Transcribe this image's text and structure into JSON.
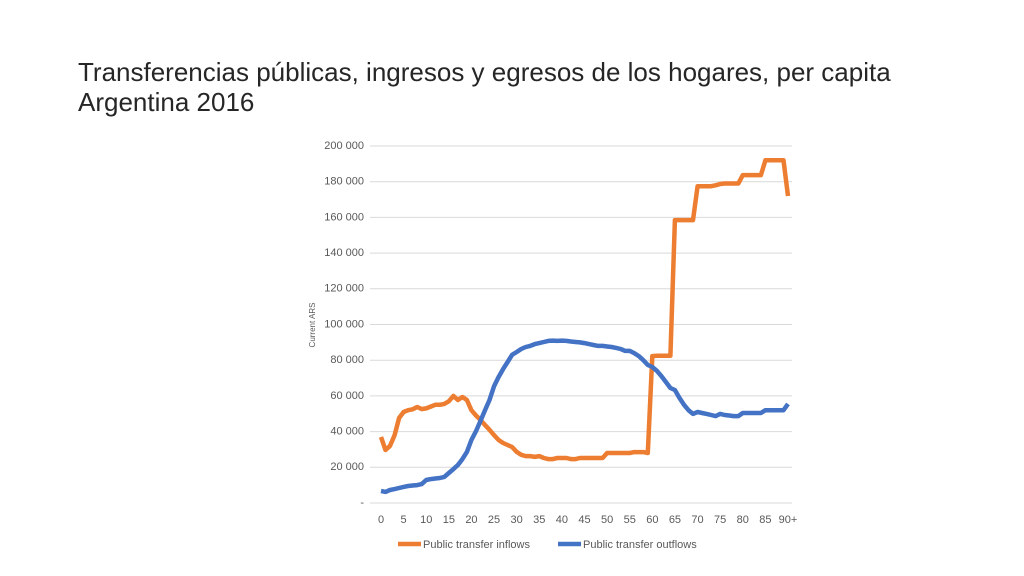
{
  "chart_data": {
    "type": "line",
    "title": "Transferencias públicas, ingresos y egresos de los hogares, per capita",
    "subtitle": "Argentina 2016",
    "y_label": "Current ARS",
    "categories": [
      "0",
      null,
      null,
      null,
      null,
      "5",
      null,
      null,
      null,
      null,
      "10",
      null,
      null,
      null,
      null,
      "15",
      null,
      null,
      null,
      null,
      "20",
      null,
      null,
      null,
      null,
      "25",
      null,
      null,
      null,
      null,
      "30",
      null,
      null,
      null,
      null,
      "35",
      null,
      null,
      null,
      null,
      "40",
      null,
      null,
      null,
      null,
      "45",
      null,
      null,
      null,
      null,
      "50",
      null,
      null,
      null,
      null,
      "55",
      null,
      null,
      null,
      null,
      "60",
      null,
      null,
      null,
      null,
      "65",
      null,
      null,
      null,
      null,
      "70",
      null,
      null,
      null,
      null,
      "75",
      null,
      null,
      null,
      null,
      "80",
      null,
      null,
      null,
      null,
      "85",
      null,
      null,
      null,
      null,
      "90+"
    ],
    "series": [
      {
        "name": "Public transfer inflows",
        "color": "#ed7d31",
        "values": [
          37000,
          29700,
          32000,
          38000,
          47600,
          51000,
          52000,
          52500,
          53800,
          52600,
          53000,
          54000,
          55000,
          55000,
          55500,
          57000,
          60000,
          57700,
          59400,
          57700,
          52000,
          49000,
          46500,
          43700,
          41000,
          38000,
          35300,
          33600,
          32500,
          31400,
          28600,
          27000,
          26300,
          26300,
          25800,
          26300,
          25200,
          24600,
          24600,
          25200,
          25200,
          25200,
          24600,
          24600,
          25200,
          25200,
          25200,
          25200,
          25200,
          25200,
          28000,
          28000,
          28000,
          28000,
          28000,
          28000,
          28500,
          28500,
          28500,
          28000,
          82300,
          82500,
          82500,
          82500,
          82500,
          158500,
          158500,
          158500,
          158500,
          158500,
          177500,
          177500,
          177500,
          177500,
          178000,
          178700,
          179000,
          179000,
          179000,
          179000,
          183700,
          183700,
          183700,
          183700,
          183700,
          192000,
          192000,
          192000,
          192000,
          192000,
          172000
        ]
      },
      {
        "name": "Public transfer outflows",
        "color": "#4472c4",
        "values": [
          6700,
          6200,
          7300,
          7800,
          8400,
          9000,
          9500,
          9800,
          10000,
          10600,
          12900,
          13400,
          13700,
          14000,
          14600,
          16800,
          19000,
          21300,
          24600,
          28600,
          35300,
          40300,
          46000,
          52000,
          57700,
          65500,
          70600,
          75000,
          79000,
          83000,
          84600,
          86300,
          87400,
          88000,
          89000,
          89600,
          90200,
          90800,
          91000,
          90800,
          91000,
          90800,
          90500,
          90200,
          90000,
          89600,
          89000,
          88500,
          88000,
          88000,
          87700,
          87400,
          86900,
          86300,
          85200,
          85200,
          84000,
          82300,
          80000,
          77300,
          76200,
          74000,
          71100,
          67800,
          64400,
          63300,
          58800,
          55000,
          52000,
          49900,
          51000,
          50400,
          49900,
          49300,
          48700,
          49900,
          49300,
          49000,
          48700,
          48700,
          50400,
          50400,
          50400,
          50400,
          50400,
          52000,
          52000,
          52000,
          52000,
          52000,
          55500
        ]
      }
    ],
    "ylim": [
      0,
      200000
    ],
    "yticks": [
      {
        "value": 0,
        "label": "-"
      },
      {
        "value": 20000,
        "label": "20 000"
      },
      {
        "value": 40000,
        "label": "40 000"
      },
      {
        "value": 60000,
        "label": "60 000"
      },
      {
        "value": 80000,
        "label": "80 000"
      },
      {
        "value": 100000,
        "label": "100 000"
      },
      {
        "value": 120000,
        "label": "120 000"
      },
      {
        "value": 140000,
        "label": "140 000"
      },
      {
        "value": 160000,
        "label": "160 000"
      },
      {
        "value": 180000,
        "label": "180 000"
      },
      {
        "value": 200000,
        "label": "200 000"
      }
    ],
    "grid": true,
    "legend": "bottom"
  }
}
